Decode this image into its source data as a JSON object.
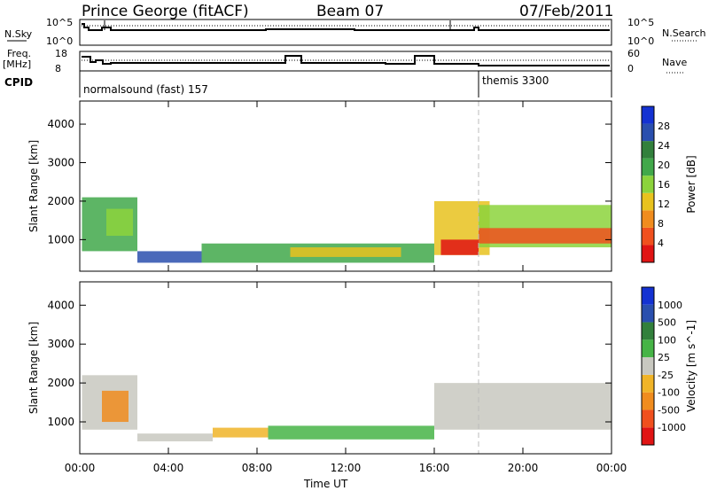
{
  "header": {
    "station": "Prince George (fitACF)",
    "beam": "Beam 07",
    "date": "07/Feb/2011"
  },
  "strips": {
    "nsky_label": "N.Sky",
    "nsky_ticks": [
      "10^5",
      "10^0"
    ],
    "nsearch_label": "N.Search",
    "nsearch_ticks": [
      "10^5",
      "10^0"
    ],
    "freq_label": "Freq.",
    "freq_unit": "[MHz]",
    "freq_ticks": [
      "18",
      "8"
    ],
    "nave_label": "Nave",
    "nave_ticks": [
      "60",
      "0"
    ],
    "cpid_label": "CPID",
    "cpid_segments": [
      "normalsound (fast) 157",
      "themis 3300"
    ]
  },
  "colors": {
    "power_scale": [
      "#1432d2",
      "#2a4fae",
      "#32803c",
      "#41a84a",
      "#8cd33c",
      "#e8c21e",
      "#f08c1e",
      "#f0501e",
      "#e01414"
    ],
    "velocity_scale": [
      "#1432d2",
      "#2a4fae",
      "#32803c",
      "#46b446",
      "#c8c8c0",
      "#f0b428",
      "#f08c1e",
      "#f0501e",
      "#e01414"
    ]
  },
  "chart_data": [
    {
      "type": "heatmap",
      "title": "Power",
      "xlabel": "Time UT",
      "ylabel": "Slant Range [km]",
      "colorbar_label": "Power [dB]",
      "colorbar_ticks": [
        "28",
        "24",
        "20",
        "16",
        "12",
        "8",
        "4"
      ],
      "x_ticks": [
        "00:00",
        "04:00",
        "08:00",
        "12:00",
        "16:00",
        "20:00",
        "00:00"
      ],
      "y_ticks": [
        "4000",
        "3000",
        "2000",
        "1000"
      ],
      "ylim": [
        180,
        4600
      ],
      "xlim_hours": [
        0,
        24
      ],
      "regions": [
        {
          "t0": 0.1,
          "t1": 2.6,
          "r0": 700,
          "r1": 2100,
          "level": 3
        },
        {
          "t0": 1.2,
          "t1": 2.4,
          "r0": 1100,
          "r1": 1800,
          "level": 4
        },
        {
          "t0": 2.6,
          "t1": 5.5,
          "r0": 400,
          "r1": 700,
          "level": 1
        },
        {
          "t0": 5.5,
          "t1": 16.0,
          "r0": 400,
          "r1": 900,
          "level": 3
        },
        {
          "t0": 9.5,
          "t1": 14.5,
          "r0": 550,
          "r1": 800,
          "level": 5
        },
        {
          "t0": 16.0,
          "t1": 18.5,
          "r0": 600,
          "r1": 2000,
          "level": 5
        },
        {
          "t0": 16.3,
          "t1": 18.0,
          "r0": 600,
          "r1": 1000,
          "level": 8
        },
        {
          "t0": 18.0,
          "t1": 24.0,
          "r0": 800,
          "r1": 1900,
          "level": 4
        },
        {
          "t0": 18.0,
          "t1": 24.0,
          "r0": 900,
          "r1": 1300,
          "level": 7
        }
      ]
    },
    {
      "type": "heatmap",
      "title": "Velocity",
      "xlabel": "Time UT",
      "ylabel": "Slant Range [km]",
      "colorbar_label": "Velocity [m s^-1]",
      "colorbar_ticks": [
        "1000",
        "500",
        "100",
        "25",
        "-25",
        "-100",
        "-500",
        "-1000"
      ],
      "x_ticks": [
        "00:00",
        "04:00",
        "08:00",
        "12:00",
        "16:00",
        "20:00",
        "00:00"
      ],
      "y_ticks": [
        "4000",
        "3000",
        "2000",
        "1000"
      ],
      "ylim": [
        180,
        4600
      ],
      "xlim_hours": [
        0,
        24
      ],
      "regions": [
        {
          "t0": 0.1,
          "t1": 2.6,
          "r0": 800,
          "r1": 2200,
          "level": 4
        },
        {
          "t0": 1.0,
          "t1": 2.2,
          "r0": 1000,
          "r1": 1800,
          "level": 6
        },
        {
          "t0": 2.6,
          "t1": 6.0,
          "r0": 500,
          "r1": 700,
          "level": 4
        },
        {
          "t0": 6.0,
          "t1": 8.5,
          "r0": 600,
          "r1": 850,
          "level": 5
        },
        {
          "t0": 8.5,
          "t1": 16.0,
          "r0": 550,
          "r1": 900,
          "level": 3
        },
        {
          "t0": 16.0,
          "t1": 24.0,
          "r0": 800,
          "r1": 2000,
          "level": 4
        }
      ]
    }
  ]
}
